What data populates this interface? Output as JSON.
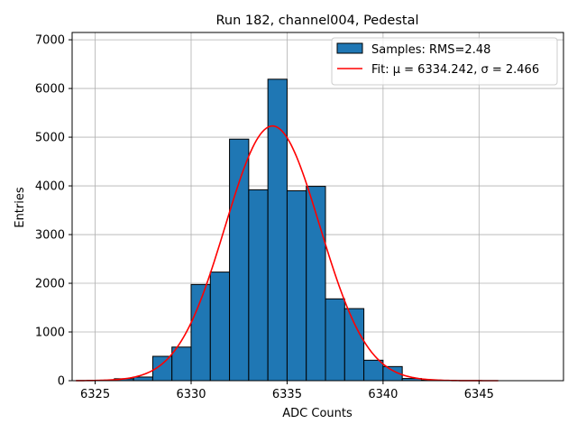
{
  "chart_data": {
    "type": "bar",
    "title": "Run 182, channel004, Pedestal",
    "xlabel": "ADC Counts",
    "ylabel": "Entries",
    "xlim": [
      6323.8,
      6349.4
    ],
    "ylim": [
      0,
      7150
    ],
    "xticks": [
      6325,
      6330,
      6335,
      6340,
      6345
    ],
    "yticks": [
      0,
      1000,
      2000,
      3000,
      4000,
      5000,
      6000,
      7000
    ],
    "grid": true,
    "legend_position": "top-right",
    "bin_width": 1,
    "bins": [
      {
        "left": 6325,
        "value": 2
      },
      {
        "left": 6326,
        "value": 40
      },
      {
        "left": 6327,
        "value": 75
      },
      {
        "left": 6328,
        "value": 500
      },
      {
        "left": 6329,
        "value": 690
      },
      {
        "left": 6330,
        "value": 1975
      },
      {
        "left": 6331,
        "value": 2230
      },
      {
        "left": 6332,
        "value": 4960
      },
      {
        "left": 6333,
        "value": 3920
      },
      {
        "left": 6334,
        "value": 6190
      },
      {
        "left": 6335,
        "value": 3900
      },
      {
        "left": 6336,
        "value": 3990
      },
      {
        "left": 6337,
        "value": 1680
      },
      {
        "left": 6338,
        "value": 1480
      },
      {
        "left": 6339,
        "value": 420
      },
      {
        "left": 6340,
        "value": 290
      },
      {
        "left": 6341,
        "value": 45
      },
      {
        "left": 6342,
        "value": 10
      },
      {
        "left": 6343,
        "value": 2
      }
    ],
    "fit": {
      "mu": 6334.242,
      "sigma": 2.466,
      "amplitude": 5230,
      "x_range": [
        6324,
        6346
      ]
    },
    "series": [
      {
        "name": "Samples: RMS=2.48",
        "type": "histogram",
        "color": "#1f77b4",
        "edgecolor": "#000000"
      },
      {
        "name": "Fit: μ = 6334.242, σ = 2.466",
        "type": "line",
        "color": "#ff0000"
      }
    ]
  }
}
